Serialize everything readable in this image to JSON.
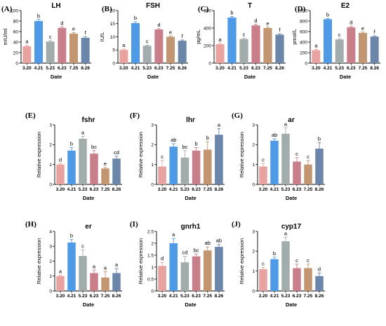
{
  "colors": [
    "#e8a3a0",
    "#4e9ae6",
    "#a3acac",
    "#c97f8a",
    "#c19670",
    "#6b86a8"
  ],
  "chart_data": [
    {
      "type": "bar",
      "letter": "(A)",
      "title": "LH",
      "ylabel": "mIU/ml",
      "xlabel": "Date",
      "categories": [
        "3.20",
        "4.21",
        "5.23",
        "6.23",
        "7.25",
        "8.26"
      ],
      "values": [
        32,
        80,
        41,
        67,
        56,
        48
      ],
      "errors": [
        2,
        3,
        2,
        2,
        2,
        2
      ],
      "sig": [
        "a",
        "b",
        "c",
        "d",
        "e",
        "f"
      ],
      "ylim": [
        0,
        100
      ],
      "yticks": [
        0,
        20,
        40,
        60,
        80,
        100
      ]
    },
    {
      "type": "bar",
      "letter": "(B)",
      "title": "FSH",
      "ylabel": "IU/L",
      "xlabel": "Date",
      "categories": [
        "3.20",
        "4.21",
        "5.23",
        "6.23",
        "7.25",
        "8.26"
      ],
      "values": [
        5,
        15.2,
        6.6,
        12.8,
        10,
        8.5
      ],
      "errors": [
        0.3,
        0.5,
        0.2,
        0.3,
        0.3,
        0.3
      ],
      "sig": [
        "a",
        "b",
        "c",
        "d",
        "e",
        "f"
      ],
      "ylim": [
        0,
        20
      ],
      "yticks": [
        0,
        5,
        10,
        15,
        20
      ]
    },
    {
      "type": "bar",
      "letter": "(C)",
      "title": "T",
      "ylabel": "pg/mL",
      "xlabel": "Date",
      "categories": [
        "3.20",
        "4.21",
        "5.23",
        "6.23",
        "7.25",
        "8.26"
      ],
      "values": [
        215,
        520,
        275,
        430,
        400,
        325
      ],
      "errors": [
        10,
        12,
        10,
        12,
        10,
        10
      ],
      "sig": [
        "a",
        "b",
        "c",
        "d",
        "e",
        "f"
      ],
      "ylim": [
        0,
        600
      ],
      "yticks": [
        0,
        200,
        400,
        600
      ]
    },
    {
      "type": "bar",
      "letter": "(D)",
      "title": "E2",
      "ylabel": "pmol/L",
      "xlabel": "Date",
      "categories": [
        "3.20",
        "4.21",
        "5.23",
        "6.23",
        "7.25",
        "8.26"
      ],
      "values": [
        245,
        835,
        450,
        680,
        575,
        505
      ],
      "errors": [
        15,
        12,
        15,
        20,
        15,
        15
      ],
      "sig": [
        "a",
        "b",
        "c",
        "d",
        "e",
        "f"
      ],
      "ylim": [
        0,
        1000
      ],
      "yticks": [
        0,
        200,
        400,
        600,
        800,
        1000
      ]
    },
    {
      "type": "bar",
      "letter": "(E)",
      "title": "fshr",
      "ylabel": "Relative expression",
      "xlabel": "Date",
      "categories": [
        "3.20",
        "4.21",
        "5.23",
        "6.23",
        "7.25",
        "8.26"
      ],
      "values": [
        1,
        1.7,
        2.3,
        1.55,
        0.8,
        1.3
      ],
      "errors": [
        0.05,
        0.15,
        0.12,
        0.15,
        0.05,
        0.12
      ],
      "sig": [
        "d",
        "b",
        "a",
        "bc",
        "e",
        "cd"
      ],
      "ylim": [
        0,
        3
      ],
      "yticks": [
        0,
        1,
        2,
        3
      ]
    },
    {
      "type": "bar",
      "letter": "(F)",
      "title": "lhr",
      "ylabel": "Relative expression",
      "xlabel": "Date",
      "categories": [
        "3.20",
        "4.21",
        "5.23",
        "6.23",
        "7.25",
        "8.26"
      ],
      "values": [
        0.9,
        1.9,
        1.35,
        1.7,
        1.75,
        2.5
      ],
      "errors": [
        0.3,
        0.15,
        0.35,
        0.15,
        0.4,
        0.3
      ],
      "sig": [
        "c",
        "ab",
        "bc",
        "b",
        "b",
        "a"
      ],
      "ylim": [
        0,
        3
      ],
      "yticks": [
        0,
        1,
        2,
        3
      ]
    },
    {
      "type": "bar",
      "letter": "(G)",
      "title": "ar",
      "ylabel": "Relative expression",
      "xlabel": "Date",
      "categories": [
        "3.20",
        "4.21",
        "5.23",
        "6.23",
        "7.25",
        "8.26"
      ],
      "values": [
        0.9,
        2.2,
        2.55,
        1.15,
        1.0,
        1.8
      ],
      "errors": [
        0.15,
        0.1,
        0.3,
        0.2,
        0.2,
        0.3
      ],
      "sig": [
        "c",
        "ab",
        "a",
        "c",
        "c",
        "b"
      ],
      "ylim": [
        0,
        3
      ],
      "yticks": [
        0,
        1,
        2,
        3
      ]
    },
    {
      "type": "bar",
      "letter": "(H)",
      "title": "er",
      "ylabel": "Relative expression",
      "xlabel": "Date",
      "categories": [
        "3.20",
        "4.21",
        "5.23",
        "6.23",
        "7.25",
        "8.26"
      ],
      "values": [
        1,
        3.25,
        2.35,
        1.2,
        0.9,
        1.2
      ],
      "errors": [
        0.05,
        0.2,
        0.4,
        0.2,
        0.4,
        0.3
      ],
      "sig": [
        "a",
        "b",
        "c",
        "a",
        "a",
        "a"
      ],
      "ylim": [
        0,
        4
      ],
      "yticks": [
        0,
        1,
        2,
        3,
        4
      ]
    },
    {
      "type": "bar",
      "letter": "(I)",
      "title": "gnrh1",
      "ylabel": "Relative expression",
      "xlabel": "Date",
      "categories": [
        "3.20",
        "4.21",
        "5.23",
        "6.23",
        "7.25",
        "8.26"
      ],
      "values": [
        1.05,
        2.0,
        1.2,
        1.45,
        1.7,
        1.85
      ],
      "errors": [
        0.15,
        0.2,
        0.25,
        0.1,
        0.15,
        0.1
      ],
      "sig": [
        "d",
        "a",
        "cd",
        "bc",
        "ab",
        "ab"
      ],
      "ylim": [
        0,
        2.5
      ],
      "yticks": [
        0,
        0.5,
        1.0,
        1.5,
        2.0,
        2.5
      ]
    },
    {
      "type": "bar",
      "letter": "(J)",
      "title": "cyp17",
      "ylabel": "Relative expression",
      "xlabel": "Date",
      "categories": [
        "3.20",
        "4.21",
        "5.23",
        "6.23",
        "7.25",
        "8.26"
      ],
      "values": [
        1.1,
        1.6,
        2.5,
        1.15,
        1.15,
        0.75
      ],
      "errors": [
        0.08,
        0.1,
        0.2,
        0.2,
        0.2,
        0.15
      ],
      "sig": [
        "c",
        "b",
        "a",
        "c",
        "c",
        "d"
      ],
      "ylim": [
        0,
        3
      ],
      "yticks": [
        0,
        1,
        2,
        3
      ]
    }
  ]
}
